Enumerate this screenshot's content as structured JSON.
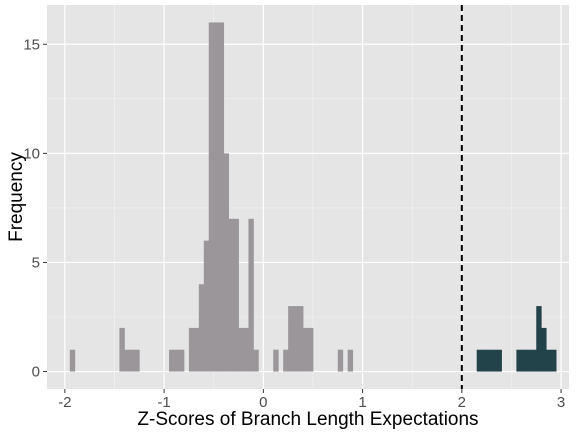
{
  "chart_data": {
    "type": "bar",
    "subtype": "histogram",
    "xlabel": "Z-Scores of Branch Length Expectations",
    "ylabel": "Frequency",
    "xlim": [
      -2.18,
      3.08
    ],
    "ylim": [
      -0.8,
      16.8
    ],
    "x_ticks": [
      -2,
      -1,
      0,
      1,
      2,
      3
    ],
    "x_tick_labels": [
      "-2",
      "-1",
      "0",
      "1",
      "2",
      "3"
    ],
    "y_ticks": [
      0,
      5,
      10,
      15
    ],
    "y_tick_labels": [
      "0",
      "5",
      "10",
      "15"
    ],
    "grid": true,
    "threshold_line": {
      "x": 2,
      "style": "dashed",
      "color": "#000000"
    },
    "bin_width": 0.05,
    "series": [
      {
        "color": "#9a969a",
        "bins": [
          {
            "x0": -1.95,
            "count": 1
          },
          {
            "x0": -1.45,
            "count": 2
          },
          {
            "x0": -1.4,
            "count": 1
          },
          {
            "x0": -1.35,
            "count": 1
          },
          {
            "x0": -1.3,
            "count": 1
          },
          {
            "x0": -0.95,
            "count": 1
          },
          {
            "x0": -0.9,
            "count": 1
          },
          {
            "x0": -0.85,
            "count": 1
          },
          {
            "x0": -0.75,
            "count": 2
          },
          {
            "x0": -0.7,
            "count": 2
          },
          {
            "x0": -0.65,
            "count": 4
          },
          {
            "x0": -0.6,
            "count": 6
          },
          {
            "x0": -0.55,
            "count": 16
          },
          {
            "x0": -0.5,
            "count": 16
          },
          {
            "x0": -0.45,
            "count": 16
          },
          {
            "x0": -0.4,
            "count": 10
          },
          {
            "x0": -0.35,
            "count": 7
          },
          {
            "x0": -0.3,
            "count": 7
          },
          {
            "x0": -0.25,
            "count": 2
          },
          {
            "x0": -0.2,
            "count": 2
          },
          {
            "x0": -0.15,
            "count": 7
          },
          {
            "x0": -0.1,
            "count": 1
          },
          {
            "x0": 0.1,
            "count": 1
          },
          {
            "x0": 0.2,
            "count": 1
          },
          {
            "x0": 0.25,
            "count": 3
          },
          {
            "x0": 0.3,
            "count": 3
          },
          {
            "x0": 0.35,
            "count": 3
          },
          {
            "x0": 0.4,
            "count": 2
          },
          {
            "x0": 0.45,
            "count": 2
          },
          {
            "x0": 0.75,
            "count": 1
          },
          {
            "x0": 0.85,
            "count": 1
          }
        ]
      },
      {
        "color": "#23434a",
        "bins": [
          {
            "x0": 2.15,
            "count": 1
          },
          {
            "x0": 2.2,
            "count": 1
          },
          {
            "x0": 2.25,
            "count": 1
          },
          {
            "x0": 2.3,
            "count": 1
          },
          {
            "x0": 2.35,
            "count": 1
          },
          {
            "x0": 2.55,
            "count": 1
          },
          {
            "x0": 2.6,
            "count": 1
          },
          {
            "x0": 2.65,
            "count": 1
          },
          {
            "x0": 2.7,
            "count": 1
          },
          {
            "x0": 2.75,
            "count": 3
          },
          {
            "x0": 2.8,
            "count": 2
          },
          {
            "x0": 2.85,
            "count": 1
          },
          {
            "x0": 2.9,
            "count": 1
          }
        ]
      }
    ]
  }
}
